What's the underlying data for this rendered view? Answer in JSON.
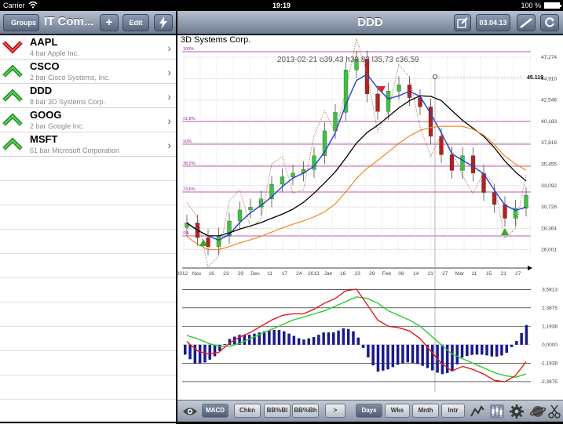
{
  "status": {
    "carrier": "Carrier",
    "time": "19:19",
    "battery": "100 %"
  },
  "left_nav": {
    "back_label": "Groups",
    "title": "IT Com...",
    "add_label": "+",
    "edit_label": "Edit"
  },
  "right_nav": {
    "title": "DDD",
    "date_label": "03.04.13"
  },
  "watchlist": [
    {
      "symbol": "AAPL",
      "desc": "4 bar Apple Inc.",
      "trend": "down"
    },
    {
      "symbol": "CSCO",
      "desc": "2 bar Cisco Systems, Inc.",
      "trend": "up"
    },
    {
      "symbol": "DDD",
      "desc": "8 bar 3D Systems Corp.",
      "trend": "up"
    },
    {
      "symbol": "GOOG",
      "desc": "2 bar Google Inc.",
      "trend": "up"
    },
    {
      "symbol": "MSFT",
      "desc": "61 bar Microsoft Corporation",
      "trend": "up"
    }
  ],
  "chart": {
    "title": "3D Systems Corp.",
    "info": "2013-02-21 o39,43 h39,82 l35,73 c36,59",
    "crosshair_value": "45.119",
    "price_ticks": [
      "47,274",
      "44,910",
      "42,546",
      "40,183",
      "37,819",
      "35,455",
      "33,092",
      "30,728",
      "28,364",
      "26,001"
    ],
    "fib_labels": [
      "100%",
      "61,8%",
      "50%",
      "38,2%",
      "23,6%",
      "0%"
    ],
    "date_labels": [
      "2012",
      "Nov",
      "16",
      "23",
      "29",
      "Dec",
      "11",
      "17",
      "24",
      "2013",
      "Jan",
      "16",
      "23",
      "29",
      "Feb",
      "08",
      "14",
      "21",
      "27",
      "Mar",
      "11",
      "15",
      "21",
      "27"
    ],
    "macd_ticks": [
      "3,5813",
      "2,3875",
      "1,1938",
      "0,0000",
      "-1,1938",
      "-2,3875"
    ]
  },
  "toolbar": {
    "indicators": [
      "MACD",
      "Chkn",
      "BB%Bl",
      "BB%Bh",
      ">"
    ],
    "periods": [
      "Days",
      "Wks",
      "Mnth",
      "Intr"
    ]
  },
  "chart_data": {
    "type": "line",
    "title": "3D Systems Corp.",
    "series": [
      {
        "name": "Close",
        "values": [
          29.2,
          27.6,
          26.6,
          27.8,
          29.4,
          30.6,
          30.9,
          31.8,
          33.4,
          34.2,
          34.6,
          35.0,
          36.5,
          39.2,
          41.2,
          45.8,
          47.0,
          43.2,
          41.3,
          43.5,
          44.2,
          42.8,
          41.8,
          38.6,
          36.6,
          34.9,
          36.5,
          34.6,
          32.5,
          31.2,
          29.7,
          30.8,
          32.2
        ]
      },
      {
        "name": "MACD",
        "values": [
          0.2,
          -0.4,
          -0.6,
          -0.5,
          0.1,
          0.5,
          0.8,
          1.2,
          1.6,
          1.9,
          2.0,
          2.0,
          2.3,
          2.7,
          3.0,
          3.5,
          3.6,
          2.6,
          1.6,
          1.2,
          1.1,
          0.9,
          0.4,
          -0.4,
          -1.2,
          -1.7,
          -1.4,
          -1.6,
          -1.9,
          -2.3,
          -2.4,
          -2.0,
          -1.1
        ]
      },
      {
        "name": "Signal",
        "values": [
          0.6,
          0.4,
          0.1,
          -0.1,
          -0.1,
          0.1,
          0.4,
          0.7,
          1.0,
          1.3,
          1.6,
          1.8,
          2.0,
          2.2,
          2.5,
          2.8,
          3.1,
          3.0,
          2.7,
          2.2,
          1.9,
          1.6,
          1.2,
          0.6,
          0.0,
          -0.6,
          -0.9,
          -1.2,
          -1.5,
          -1.8,
          -2.0,
          -2.1,
          -1.9
        ]
      }
    ],
    "ylim": [
      26.001,
      47.274
    ]
  }
}
